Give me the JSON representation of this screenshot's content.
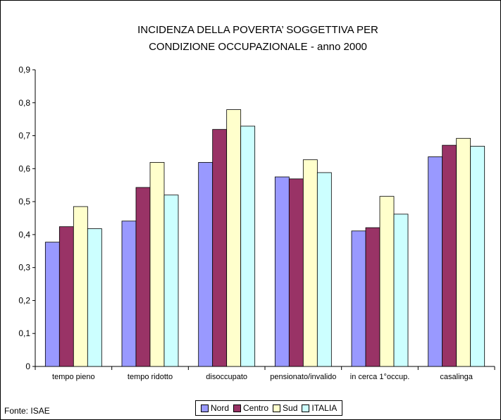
{
  "chart_data": {
    "type": "bar",
    "title": "INCIDENZA DELLA POVERTA' SOGGETTIVA PER CONDIZIONE OCCUPAZIONALE - anno 2000",
    "title_lines": [
      "INCIDENZA DELLA POVERTA’ SOGGETTIVA PER",
      "CONDIZIONE OCCUPAZIONALE - anno 2000"
    ],
    "categories": [
      "tempo pieno",
      "tempo ridotto",
      "disoccupato",
      "pensionato/invalido",
      "in cerca 1°occup.",
      "casalinga"
    ],
    "series": [
      {
        "name": "Nord",
        "color": "#9999ff",
        "values": [
          0.377,
          0.441,
          0.619,
          0.575,
          0.411,
          0.636
        ]
      },
      {
        "name": "Centro",
        "color": "#993366",
        "values": [
          0.424,
          0.543,
          0.719,
          0.569,
          0.421,
          0.671
        ]
      },
      {
        "name": "Sud",
        "color": "#ffffcc",
        "values": [
          0.485,
          0.619,
          0.779,
          0.627,
          0.516,
          0.692
        ]
      },
      {
        "name": "ITALIA",
        "color": "#ccffff",
        "values": [
          0.418,
          0.52,
          0.729,
          0.588,
          0.462,
          0.668
        ]
      }
    ],
    "ylim": [
      0,
      0.9
    ],
    "yticks": [
      "0",
      "0,1",
      "0,2",
      "0,3",
      "0,4",
      "0,5",
      "0,6",
      "0,7",
      "0,8",
      "0,9"
    ],
    "grid": false,
    "legend_position": "bottom",
    "source": "Fonte: ISAE"
  }
}
